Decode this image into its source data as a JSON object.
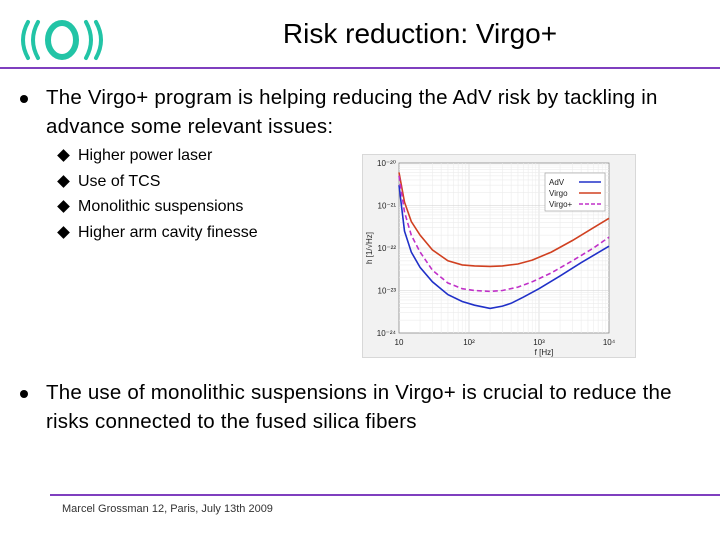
{
  "header": {
    "title": "Risk reduction: Virgo+",
    "logo_icon": "ego-virgo-logo-icon",
    "logo_color": "#22c4a6"
  },
  "bullets": [
    {
      "text": "The Virgo+ program is helping reducing the AdV risk by tackling in advance some relevant issues:"
    },
    {
      "text": "The use of monolithic suspensions in Virgo+ is crucial to reduce the risks connected to the fused silica fibers"
    }
  ],
  "sub_bullets": [
    {
      "text": "Higher power laser"
    },
    {
      "text": "Use of TCS"
    },
    {
      "text": "Monolithic suspensions"
    },
    {
      "text": "Higher arm cavity finesse"
    }
  ],
  "chart_data": {
    "type": "line",
    "title": "",
    "xlabel": "f [Hz]",
    "ylabel": "h [1/√Hz]",
    "xscale": "log",
    "yscale": "log",
    "xlim": [
      10,
      10000
    ],
    "ylim": [
      1e-24,
      1e-20
    ],
    "x_ticks": [
      {
        "label": "10",
        "value": 10
      },
      {
        "label": "10²",
        "value": 100
      },
      {
        "label": "10³",
        "value": 1000
      },
      {
        "label": "10⁴",
        "value": 10000
      }
    ],
    "y_ticks": [
      {
        "label": "10⁻²⁰",
        "value": 1e-20
      },
      {
        "label": "10⁻²¹",
        "value": 1e-21
      },
      {
        "label": "10⁻²²",
        "value": 1e-22
      },
      {
        "label": "10⁻²³",
        "value": 1e-23
      },
      {
        "label": "10⁻²⁴",
        "value": 1e-24
      }
    ],
    "legend_position": "top-right",
    "series": [
      {
        "name": "AdV",
        "color": "#2030c8",
        "dash": "solid",
        "x": [
          10,
          12,
          15,
          20,
          30,
          50,
          80,
          120,
          200,
          300,
          400,
          600,
          1000,
          2000,
          4000,
          10000
        ],
        "y": [
          3e-21,
          2.5e-22,
          8e-23,
          3.5e-23,
          1.6e-23,
          8e-24,
          5.5e-24,
          4.5e-24,
          3.8e-24,
          4.3e-24,
          5e-24,
          7e-24,
          1.1e-23,
          2.2e-23,
          4.5e-23,
          1.1e-22
        ]
      },
      {
        "name": "Virgo",
        "color": "#d04020",
        "dash": "solid",
        "x": [
          10,
          12,
          15,
          20,
          30,
          50,
          80,
          120,
          200,
          300,
          500,
          800,
          1500,
          3000,
          6000,
          10000
        ],
        "y": [
          6e-21,
          1.2e-21,
          4.2e-22,
          2e-22,
          9e-23,
          5e-23,
          4e-23,
          3.8e-23,
          3.7e-23,
          3.8e-23,
          4.2e-23,
          5.2e-23,
          8e-23,
          1.5e-22,
          3e-22,
          5e-22
        ]
      },
      {
        "name": "Virgo+",
        "color": "#c030c8",
        "dash": "dashed",
        "x": [
          10,
          12,
          15,
          20,
          30,
          50,
          80,
          120,
          200,
          300,
          500,
          800,
          1500,
          3000,
          6000,
          10000
        ],
        "y": [
          5e-21,
          7e-22,
          2e-22,
          8e-23,
          3e-23,
          1.5e-23,
          1.1e-23,
          1e-23,
          9.5e-24,
          1e-23,
          1.2e-23,
          1.6e-23,
          2.6e-23,
          5e-23,
          1e-22,
          1.8e-22
        ]
      }
    ]
  },
  "footer": {
    "text": "Marcel Grossman 12, Paris, July 13th 2009"
  },
  "colors": {
    "accent_line": "#7f3fbf",
    "chart_background": "#f2f2f2"
  }
}
